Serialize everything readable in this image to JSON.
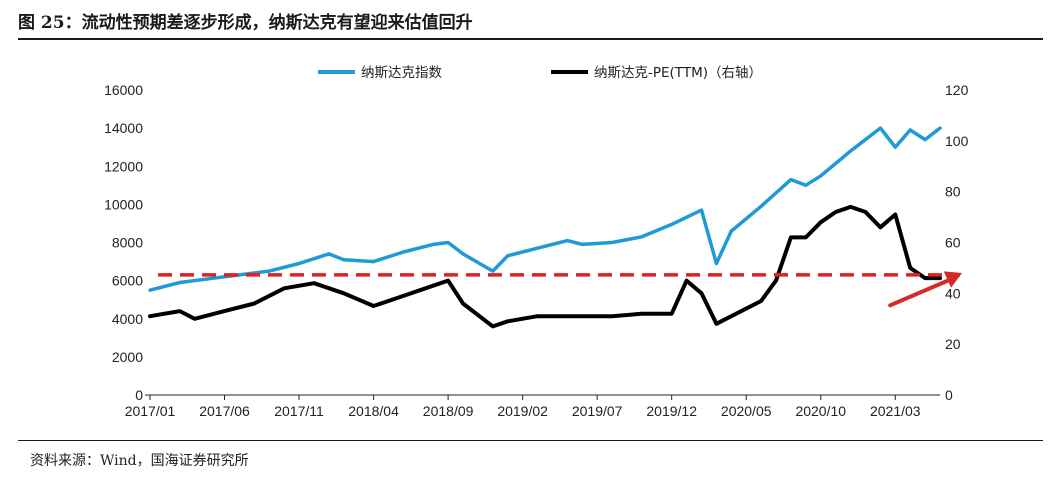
{
  "title": "图 25：流动性预期差逐步形成，纳斯达克有望迎来估值回升",
  "source": "资料来源：Wind，国海证券研究所",
  "chart_data": {
    "type": "line",
    "legend": [
      {
        "label": "纳斯达克指数",
        "color": "#1f9ad6"
      },
      {
        "label": "纳斯达克-PE(TTM)（右轴）",
        "color": "#000000"
      }
    ],
    "x_tick_labels": [
      "2017/01",
      "2017/06",
      "2017/11",
      "2018/04",
      "2018/09",
      "2019/02",
      "2019/07",
      "2019/12",
      "2020/05",
      "2020/10",
      "2021/03"
    ],
    "y_left": {
      "min": 0,
      "max": 16000,
      "ticks": [
        "0",
        "2000",
        "4000",
        "6000",
        "8000",
        "10000",
        "12000",
        "14000",
        "16000"
      ]
    },
    "y_right": {
      "min": 0,
      "max": 120,
      "ticks": [
        "0",
        "20",
        "40",
        "60",
        "80",
        "100",
        "120"
      ]
    },
    "series": [
      {
        "name": "纳斯达克指数",
        "axis": "left",
        "color": "#1f9ad6",
        "x": [
          "2017-01",
          "2017-03",
          "2017-05",
          "2017-07",
          "2017-09",
          "2017-11",
          "2018-01",
          "2018-02",
          "2018-04",
          "2018-06",
          "2018-08",
          "2018-09",
          "2018-10",
          "2018-12",
          "2019-01",
          "2019-03",
          "2019-05",
          "2019-06",
          "2019-08",
          "2019-10",
          "2019-12",
          "2020-02",
          "2020-03",
          "2020-04",
          "2020-06",
          "2020-08",
          "2020-09",
          "2020-10",
          "2020-12",
          "2021-02",
          "2021-03",
          "2021-04",
          "2021-05",
          "2021-06"
        ],
        "values": [
          5500,
          5900,
          6100,
          6300,
          6500,
          6900,
          7400,
          7100,
          7000,
          7500,
          7900,
          8000,
          7400,
          6500,
          7300,
          7700,
          8100,
          7900,
          8000,
          8300,
          8950,
          9700,
          6900,
          8600,
          9900,
          11300,
          11000,
          11500,
          12800,
          14000,
          13000,
          13900,
          13400,
          14000
        ]
      },
      {
        "name": "纳斯达克-PE(TTM)（右轴）",
        "axis": "right",
        "color": "#000000",
        "x": [
          "2017-01",
          "2017-03",
          "2017-04",
          "2017-06",
          "2017-08",
          "2017-10",
          "2017-12",
          "2018-02",
          "2018-04",
          "2018-06",
          "2018-08",
          "2018-09",
          "2018-10",
          "2018-12",
          "2019-01",
          "2019-03",
          "2019-06",
          "2019-08",
          "2019-10",
          "2019-12",
          "2020-01",
          "2020-02",
          "2020-03",
          "2020-04",
          "2020-06",
          "2020-07",
          "2020-08",
          "2020-09",
          "2020-10",
          "2020-11",
          "2020-12",
          "2021-01",
          "2021-02",
          "2021-03",
          "2021-04",
          "2021-05",
          "2021-06"
        ],
        "values": [
          31,
          33,
          30,
          33,
          36,
          42,
          44,
          40,
          35,
          39,
          43,
          45,
          36,
          27,
          29,
          31,
          31,
          31,
          32,
          32,
          45,
          40,
          28,
          31,
          37,
          45,
          62,
          62,
          68,
          72,
          74,
          72,
          66,
          71,
          50,
          46,
          46
        ]
      }
    ],
    "annotations": [
      {
        "type": "dashed-line",
        "axis": "left",
        "value": 6300,
        "color": "#e02020"
      },
      {
        "type": "arrow",
        "color": "#d42a2a",
        "from": [
          "2021-04",
          40
        ],
        "to": [
          "2021-06",
          48
        ],
        "axis": "right"
      }
    ]
  }
}
